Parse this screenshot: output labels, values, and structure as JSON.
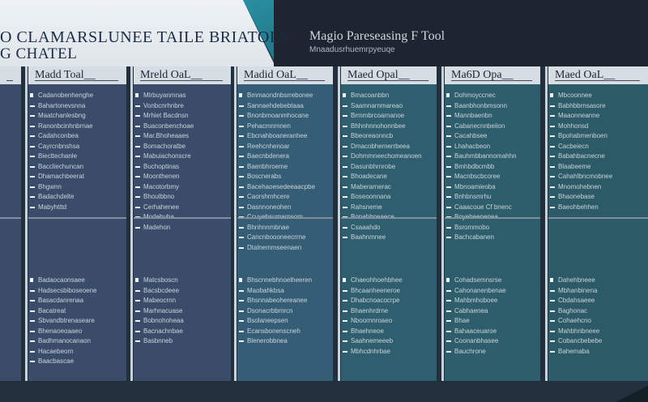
{
  "header": {
    "title_line1": "O CLAMARSLUNEE TAILE BRIATOLS",
    "title_line2": "G CHATEL",
    "tool_title": "Magio Pareseasing F Tool",
    "tool_subtitle": "Mnaadusrhuemrpyeuqe"
  },
  "columns": [
    {
      "header": "Madd Toal__",
      "top_items": [
        "Cadanobenhenghe",
        "Bahartonevsnna",
        "Maatchanlesbng",
        "Ranonbcinhnbrnae",
        "Cadahconbea",
        "Cayrcnbnshsa",
        "Biecttechanle",
        "Baccliechuncan",
        "Dhamachbeerat",
        "Bhgwnn",
        "Badachdelte",
        "Mabyhtttd"
      ],
      "bottom_items": [
        "Badaocaonsaee",
        "Hadsecsbiboseoene",
        "Basacdanrenaa",
        "Bacatreat",
        "Sbvandbtrenaseare",
        "Bhenaoeoaaeo",
        "Badhmanocanaon",
        "Hacaebeorn",
        "Baacbascae"
      ]
    },
    {
      "header": "Mreld OaL__",
      "top_items": [
        "Mlrbuyanmnas",
        "Vonbcnrhnbre",
        "Mrhiet Bacdnsn",
        "Buaconbenchoae",
        "Mar.Bhoheaaes",
        "Bomachoratbe",
        "Mabuiachonscre",
        "Buchoptinas",
        "Moonthenen",
        "Macotorbmy",
        "Bhoulbbno",
        "Cerhahenee",
        "Modebuba",
        "Madehon"
      ],
      "bottom_items": [
        "Matcsboscn",
        "Bacsbcdeee",
        "Mabeocrnn",
        "Marhnacuase",
        "Bobnohoheaa",
        "Bacnachnbae",
        "Basbnneb"
      ]
    },
    {
      "header": "Madid OaL__",
      "top_items": [
        "Bmmaondnbsrrebonee",
        "Sannaehdebebtaaa",
        "Bnonbmoanmhocane",
        "Pehacmnmnen",
        "Ebcnahboaneranhee",
        "Reehcnhenoar",
        "Baecnbdenera",
        "Baenbhroeme",
        "Boscnerabs",
        "Bacehaoesedeeaacpbe",
        "Caorshmhcere",
        "Dasnnoneohen",
        "Ccuyehsumarnsom",
        "Bhnhnnmbnae",
        "Cancnboooneecrrne",
        "Dtalnemmseenaen"
      ],
      "bottom_items": [
        "Bhscnnebhnoelheeren",
        "Maobahkbsa",
        "Bhsnnabeohereanee",
        "Dsonacrbbmrcn",
        "Bsolaneepsen",
        "Ecansbonenscneh",
        "Blenerobbnea"
      ]
    },
    {
      "header": "Maed Opal__",
      "top_items": [
        "Bmacoanbbn",
        "Saamnarnmareao",
        "Brmmbrcoarnanoe",
        "Bhhnhnnohonnbee",
        "Bbeoreaonncb",
        "Dmacobhemerrbeea",
        "Dohmmneechomeanoen",
        "Dasunbhrnrobe",
        "Bhoadecane",
        "Maberarnerac",
        "Boseoonnana",
        "Rahsneme",
        "Bonahbneaece",
        "Csaaahdo",
        "Baahnmnee"
      ],
      "bottom_items": [
        "Chaeohhoehbhee",
        "Bhcaanheeneroe",
        "Dhabcnoacocrpe",
        "Bhaenhrdrne",
        "Nboornnroaeo",
        "Bhaehneoe",
        "Saahnemeeeb",
        "Mbhcdnhrbae"
      ]
    },
    {
      "header": "Ma6D Opa__",
      "top_items": [
        "Dohmoyccnec",
        "Baanbhonbmsonn",
        "Mannbaenbn",
        "Cabanecnnbeiion",
        "Cacahbsee",
        "Lhahacbeon",
        "Bauhmbbannomahhn",
        "Bmhbdbcmbb",
        "Macnbscbcoree",
        "Mbnoamieoba",
        "Bnhbnsmrhu",
        "Caaacoue Cf bnenc",
        "Boyeheenenea",
        "Bsrommobo",
        "Bachcabanen"
      ],
      "bottom_items": [
        "Cohadsemnsrse",
        "Cahonanenbenae",
        "Mahbmhoboee",
        "Cabhaenea",
        "Bhae",
        "Bahaaceuaroe",
        "Coonanbhasee",
        "Bauchrone"
      ]
    },
    {
      "header": "Maed OaL__",
      "top_items": [
        "Mbcoonnee",
        "Babhbbrnsasore",
        "Maaonneanne",
        "Mohhonsd",
        "Bpohabmenboen",
        "Cacbeiecn",
        "Babahbacnecne",
        "Blaabeeme",
        "Cahahlbncmobnee",
        "Mnomohebnen",
        "Bhaonebase",
        "Baeohbehhen"
      ],
      "bottom_items": [
        "Dahehbneee",
        "Mbhanbinena",
        "Cbdahsaeee",
        "Baghonac",
        "Cohaehcno",
        "Mahbhnbneee",
        "Cobancbebebe",
        "Bahemaba"
      ]
    }
  ],
  "colors": {
    "header_light": "#e6ebef",
    "header_accent": "#2a8fa0",
    "header_dark": "#1e2530",
    "column_header": "#d6dde3",
    "column_colors": [
      "#3a4c6a",
      "#3a4c6a",
      "#355d75",
      "#2f5e6e",
      "#2e5e6b",
      "#2c5a66"
    ]
  }
}
